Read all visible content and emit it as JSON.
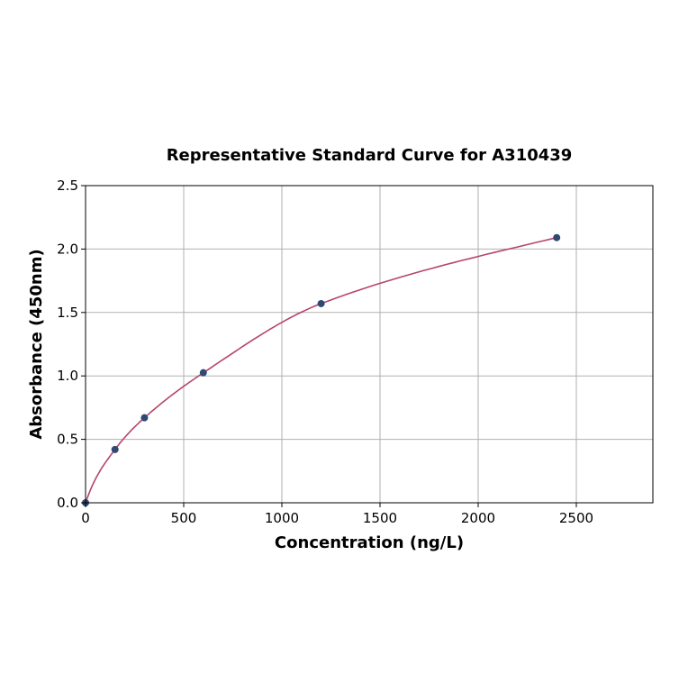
{
  "chart_data": {
    "type": "scatter",
    "title": "Representative Standard Curve for A310439",
    "xlabel": "Concentration (ng/L)",
    "ylabel": "Absorbance (450nm)",
    "xlim": [
      0,
      2890
    ],
    "ylim": [
      0,
      2.5
    ],
    "xticks": [
      "0",
      "500",
      "1000",
      "1500",
      "2000",
      "2500"
    ],
    "yticks": [
      "0.0",
      "0.5",
      "1.0",
      "1.5",
      "2.0",
      "2.5"
    ],
    "grid": true,
    "points": [
      {
        "x": 0,
        "y": 0.0
      },
      {
        "x": 150,
        "y": 0.42
      },
      {
        "x": 300,
        "y": 0.67
      },
      {
        "x": 600,
        "y": 1.025
      },
      {
        "x": 1200,
        "y": 1.57
      },
      {
        "x": 2400,
        "y": 2.09
      }
    ],
    "colors": {
      "points": "#2e4a72",
      "curve": "#b5456a",
      "grid": "#b0b0b0"
    }
  }
}
